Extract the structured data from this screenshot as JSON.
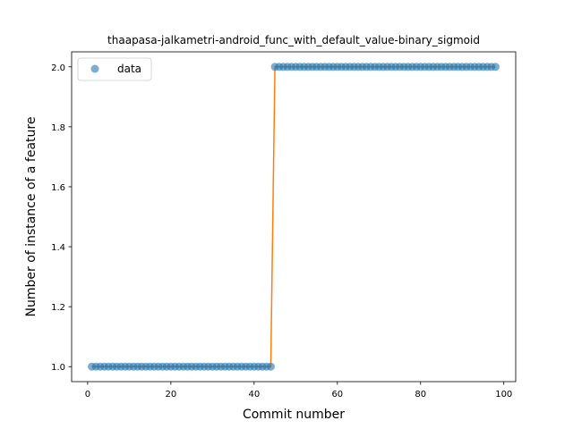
{
  "chart_data": {
    "type": "scatter",
    "title": "thaapasa-jalkametri-android_func_with_default_value-binary_sigmoid",
    "xlabel": "Commit number",
    "ylabel": "Number of instance of a feature",
    "xlim": [
      -3.85,
      102.85
    ],
    "ylim": [
      0.95,
      2.05
    ],
    "xticks": [
      0,
      20,
      40,
      60,
      80,
      100
    ],
    "yticks": [
      1.0,
      1.2,
      1.4,
      1.6,
      1.8,
      2.0
    ],
    "xtick_labels": [
      "0",
      "20",
      "40",
      "60",
      "80",
      "100"
    ],
    "ytick_labels": [
      "1.0",
      "1.2",
      "1.4",
      "1.6",
      "1.8",
      "2.0"
    ],
    "legend": {
      "placement": "top-left",
      "entries": [
        "data"
      ]
    },
    "series": [
      {
        "name": "data",
        "kind": "points",
        "color": "#1f77b4",
        "step": {
          "x_start": 1,
          "x_end": 98,
          "low_value": 1,
          "high_value": 2,
          "last_low_x": 44,
          "first_high_x": 45
        }
      },
      {
        "kind": "fit-line",
        "color": "#ff7f0e",
        "x": [
          1,
          44,
          45,
          98
        ],
        "y": [
          1,
          1,
          2,
          2
        ]
      }
    ]
  }
}
